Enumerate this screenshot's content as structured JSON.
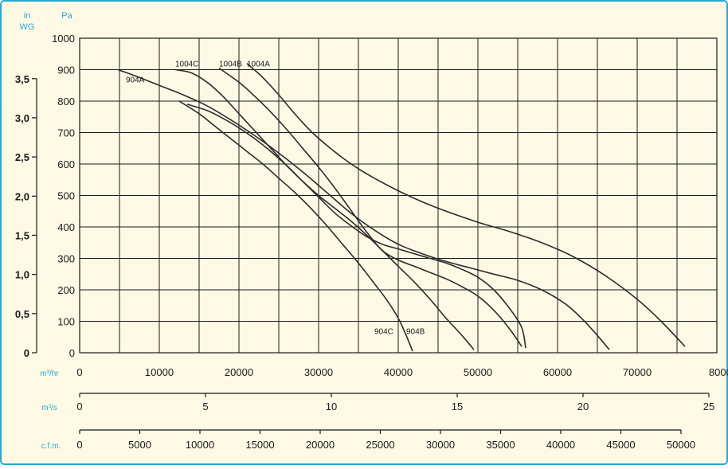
{
  "colors": {
    "background": "#fdf9e4",
    "frame": "#2aa7d8",
    "grid": "#1a1a1a",
    "curve": "#2b2b2b",
    "unit_label": "#2aa7d8",
    "tick_label": "#1a1a1a"
  },
  "chart_data": {
    "type": "line",
    "title": "",
    "grid": true,
    "pressure_axis": {
      "unit_label": "Pa",
      "range": [
        0,
        1000
      ],
      "ticks": [
        "0",
        "100",
        "200",
        "300",
        "400",
        "500",
        "600",
        "700",
        "800",
        "900",
        "1000"
      ]
    },
    "wg_axis": {
      "unit_label_line1": "in",
      "unit_label_line2": "WG",
      "ticks": [
        {
          "label": "0",
          "pa": 0
        },
        {
          "label": "0,5",
          "pa": 124.5
        },
        {
          "label": "1,0",
          "pa": 249
        },
        {
          "label": "1,5",
          "pa": 373.5
        },
        {
          "label": "2,0",
          "pa": 498
        },
        {
          "label": "2,5",
          "pa": 622.5
        },
        {
          "label": "3,0",
          "pa": 747
        },
        {
          "label": "3,5",
          "pa": 871.5
        }
      ]
    },
    "flow_axes": [
      {
        "unit_label": "m³/hr",
        "range": [
          0,
          80000
        ],
        "ticks": [
          "0",
          "10000",
          "20000",
          "30000",
          "40000",
          "50000",
          "60000",
          "70000",
          "80000"
        ]
      },
      {
        "unit_label": "m³/s",
        "range": [
          0,
          25
        ],
        "ticks": [
          "0",
          "5",
          "10",
          "15",
          "20",
          "25"
        ]
      },
      {
        "unit_label": "c.f.m.",
        "range": [
          0,
          50000
        ],
        "ticks": [
          "0",
          "5000",
          "10000",
          "15000",
          "20000",
          "25000",
          "30000",
          "35000",
          "40000",
          "45000",
          "50000"
        ]
      }
    ],
    "series": [
      {
        "name": "1004C",
        "label_at": [
          12000,
          920
        ],
        "points": [
          [
            12000,
            900
          ],
          [
            14000,
            890
          ],
          [
            16000,
            860
          ],
          [
            18000,
            815
          ],
          [
            20000,
            760
          ],
          [
            22000,
            705
          ],
          [
            24000,
            650
          ],
          [
            26000,
            595
          ],
          [
            28000,
            545
          ],
          [
            30000,
            500
          ],
          [
            32000,
            460
          ],
          [
            34000,
            420
          ],
          [
            36000,
            375
          ],
          [
            38000,
            325
          ],
          [
            40000,
            275
          ],
          [
            42000,
            225
          ],
          [
            44000,
            170
          ],
          [
            46000,
            110
          ],
          [
            48000,
            55
          ],
          [
            49500,
            10
          ]
        ]
      },
      {
        "name": "1004B",
        "label_at": [
          17500,
          920
        ],
        "points": [
          [
            17500,
            905
          ],
          [
            20000,
            860
          ],
          [
            22000,
            815
          ],
          [
            24000,
            765
          ],
          [
            26000,
            710
          ],
          [
            28000,
            650
          ],
          [
            30000,
            590
          ],
          [
            32000,
            525
          ],
          [
            34000,
            455
          ],
          [
            36000,
            385
          ],
          [
            38000,
            325
          ],
          [
            40000,
            295
          ],
          [
            42000,
            275
          ],
          [
            44000,
            255
          ],
          [
            46000,
            235
          ],
          [
            48000,
            210
          ],
          [
            50000,
            180
          ],
          [
            52000,
            135
          ],
          [
            54000,
            75
          ],
          [
            55500,
            20
          ]
        ]
      },
      {
        "name": "1004A",
        "label_at": [
          21000,
          920
        ],
        "points": [
          [
            21000,
            920
          ],
          [
            23000,
            875
          ],
          [
            25000,
            820
          ],
          [
            27000,
            760
          ],
          [
            29000,
            705
          ],
          [
            31000,
            660
          ],
          [
            33000,
            620
          ],
          [
            35000,
            585
          ],
          [
            37000,
            555
          ],
          [
            40000,
            515
          ],
          [
            43000,
            480
          ],
          [
            46000,
            450
          ],
          [
            50000,
            415
          ],
          [
            54000,
            385
          ],
          [
            58000,
            350
          ],
          [
            62000,
            305
          ],
          [
            66000,
            245
          ],
          [
            70000,
            170
          ],
          [
            73000,
            100
          ],
          [
            76000,
            20
          ]
        ]
      },
      {
        "name": "904A",
        "label_at": [
          5000,
          870
        ],
        "points": [
          [
            4800,
            900
          ],
          [
            7000,
            880
          ],
          [
            10000,
            850
          ],
          [
            13000,
            820
          ],
          [
            16000,
            785
          ],
          [
            19000,
            740
          ],
          [
            22000,
            690
          ],
          [
            25000,
            635
          ],
          [
            28000,
            575
          ],
          [
            31000,
            510
          ],
          [
            34000,
            445
          ],
          [
            37000,
            390
          ],
          [
            40000,
            345
          ],
          [
            43000,
            315
          ],
          [
            46000,
            290
          ],
          [
            49000,
            270
          ],
          [
            52000,
            250
          ],
          [
            55000,
            230
          ],
          [
            58000,
            200
          ],
          [
            61000,
            155
          ],
          [
            63000,
            110
          ],
          [
            65000,
            55
          ],
          [
            66500,
            10
          ]
        ]
      },
      {
        "name": "904B",
        "label_at": [
          41000,
          70
        ],
        "points": [
          [
            13500,
            790
          ],
          [
            16000,
            770
          ],
          [
            18000,
            745
          ],
          [
            20000,
            715
          ],
          [
            22000,
            680
          ],
          [
            24000,
            640
          ],
          [
            26000,
            595
          ],
          [
            28000,
            545
          ],
          [
            30000,
            495
          ],
          [
            32000,
            445
          ],
          [
            34000,
            405
          ],
          [
            36000,
            370
          ],
          [
            38000,
            345
          ],
          [
            40000,
            330
          ],
          [
            42000,
            315
          ],
          [
            44000,
            300
          ],
          [
            46000,
            285
          ],
          [
            48000,
            265
          ],
          [
            50000,
            240
          ],
          [
            52000,
            200
          ],
          [
            54000,
            140
          ],
          [
            55500,
            80
          ],
          [
            56000,
            15
          ]
        ]
      },
      {
        "name": "904C",
        "label_at": [
          37000,
          70
        ],
        "points": [
          [
            12500,
            800
          ],
          [
            15000,
            760
          ],
          [
            17000,
            720
          ],
          [
            19000,
            680
          ],
          [
            21000,
            640
          ],
          [
            23000,
            600
          ],
          [
            25000,
            555
          ],
          [
            27000,
            510
          ],
          [
            29000,
            460
          ],
          [
            31000,
            405
          ],
          [
            33000,
            345
          ],
          [
            35000,
            285
          ],
          [
            37000,
            220
          ],
          [
            38500,
            170
          ],
          [
            40000,
            110
          ],
          [
            41000,
            55
          ],
          [
            41800,
            5
          ]
        ]
      }
    ]
  }
}
